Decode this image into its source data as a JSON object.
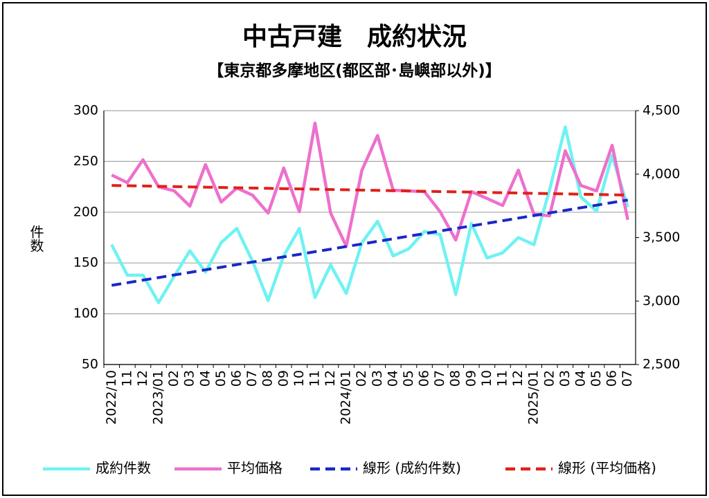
{
  "chart_data": {
    "type": "line",
    "title": "中古戸建　成約状況",
    "subtitle": "【東京都多摩地区(都区部･島嶼部以外)】",
    "y_label": "件数",
    "categories": [
      "2022/10",
      "11",
      "12",
      "2023/01",
      "02",
      "03",
      "04",
      "05",
      "06",
      "07",
      "08",
      "09",
      "10",
      "11",
      "12",
      "2024/01",
      "02",
      "03",
      "04",
      "05",
      "06",
      "07",
      "08",
      "09",
      "10",
      "11",
      "12",
      "2025/01",
      "02",
      "03",
      "04",
      "05",
      "06",
      "07"
    ],
    "ylim": [
      50,
      300
    ],
    "yticks": [
      50,
      100,
      150,
      200,
      250,
      300
    ],
    "y2lim": [
      2500,
      4500
    ],
    "y2ticks": [
      {
        "value": 2500,
        "label": "2,500"
      },
      {
        "value": 3000,
        "label": "3,000"
      },
      {
        "value": 3500,
        "label": "3,500"
      },
      {
        "value": 4000,
        "label": "4,000"
      },
      {
        "value": 4500,
        "label": "4,500"
      }
    ],
    "grid": true,
    "legend": "bottom",
    "series": [
      {
        "name": "成約件数",
        "color": "#6ff2f2",
        "dashed": false,
        "values": [
          168,
          138,
          138,
          111,
          137,
          162,
          141,
          170,
          184,
          152,
          113,
          157,
          184,
          116,
          148,
          120,
          170,
          191,
          157,
          164,
          181,
          178,
          119,
          189,
          155,
          160,
          175,
          168,
          222,
          284,
          215,
          201,
          256,
          205
        ]
      },
      {
        "name": "平均価格",
        "color": "#ee70cc",
        "dashed": false,
        "axis": "y2",
        "values": [
          3993,
          3933,
          4113,
          3900,
          3868,
          3748,
          4075,
          3780,
          3890,
          3835,
          3693,
          4048,
          3704,
          4402,
          3693,
          3432,
          4031,
          4304,
          3873,
          3868,
          3862,
          3704,
          3481,
          3862,
          3808,
          3753,
          4031,
          3683,
          3672,
          4184,
          3911,
          3868,
          4227,
          3640
        ]
      },
      {
        "name": "線形 (成約件数)",
        "color": "#1a28c4",
        "dashed": true,
        "values": [
          128,
          130.5,
          133.1,
          135.6,
          138.2,
          140.7,
          143.3,
          145.8,
          148.4,
          150.9,
          153.5,
          156.0,
          158.5,
          161.1,
          163.6,
          166.2,
          168.7,
          171.3,
          173.8,
          176.4,
          178.9,
          181.5,
          184.0,
          186.5,
          189.1,
          191.6,
          194.2,
          196.7,
          199.3,
          201.8,
          204.4,
          206.9,
          209.5,
          212
        ]
      },
      {
        "name": "線形 (平均価格)",
        "color": "#e0201a",
        "dashed": true,
        "axis": "y2",
        "values": [
          3911,
          3908.7,
          3906.4,
          3904.1,
          3901.8,
          3899.5,
          3897.2,
          3894.9,
          3892.6,
          3890.3,
          3888.0,
          3885.7,
          3883.4,
          3881.1,
          3878.8,
          3876.5,
          3874.2,
          3871.8,
          3869.5,
          3867.2,
          3864.9,
          3862.6,
          3860.3,
          3858.0,
          3855.7,
          3853.4,
          3851.1,
          3848.8,
          3846.5,
          3844.2,
          3841.9,
          3839.6,
          3837.3,
          3835
        ]
      }
    ]
  }
}
